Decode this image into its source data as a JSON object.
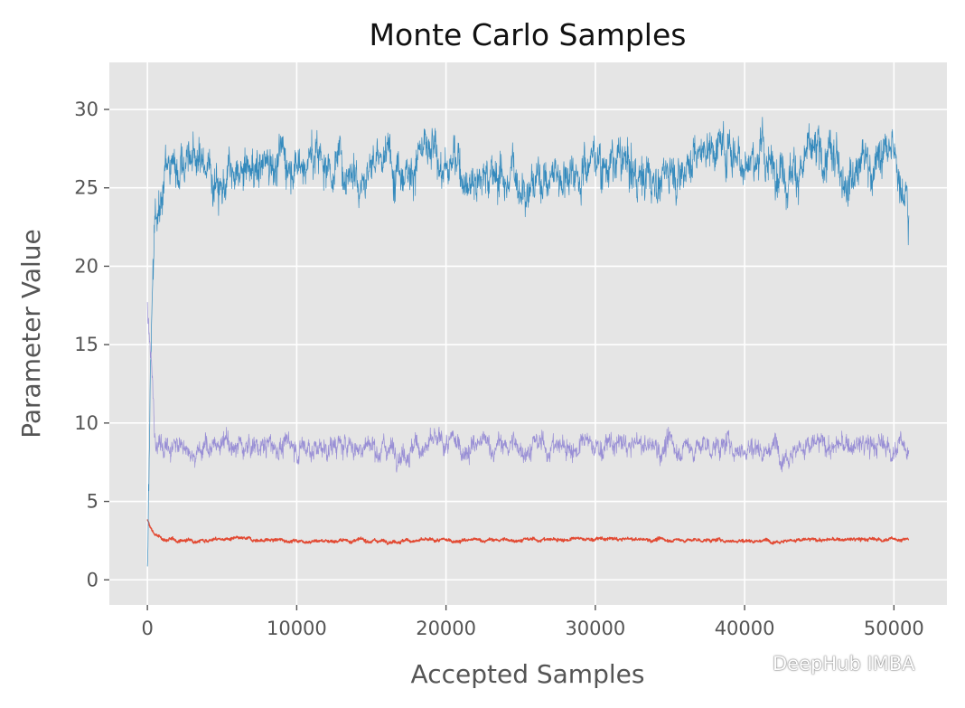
{
  "chart_data": {
    "type": "line",
    "title": "Monte Carlo Samples",
    "xlabel": "Accepted Samples",
    "ylabel": "Parameter Value",
    "xlim": [
      -2550,
      53550
    ],
    "ylim": [
      -1.6,
      33.0
    ],
    "xticks": [
      0,
      10000,
      20000,
      30000,
      40000,
      50000
    ],
    "yticks": [
      0,
      5,
      10,
      15,
      20,
      25,
      30
    ],
    "grid": true,
    "legend": "none",
    "colors": {
      "background": "#E5E5E5",
      "grid": "#FFFFFF",
      "red": "#E24A33",
      "blue": "#348ABD",
      "purple": "#988ED5"
    },
    "series": [
      {
        "color": "#E24A33",
        "x": [
          0,
          200,
          500,
          1000,
          2000,
          5000,
          10000,
          20000,
          30000,
          40000,
          51000
        ],
        "y": [
          3.8,
          3.3,
          2.9,
          2.6,
          2.5,
          2.6,
          2.5,
          2.5,
          2.6,
          2.5,
          2.6
        ],
        "noise": 0.12
      },
      {
        "color": "#348ABD",
        "x": [
          0,
          100,
          200,
          300,
          500,
          800,
          1200,
          2000,
          4000,
          6000,
          8000,
          10000,
          14000,
          18000,
          22000,
          26000,
          30000,
          34000,
          38000,
          42000,
          46000,
          50000,
          51000
        ],
        "y": [
          0.5,
          5.0,
          12.0,
          16.0,
          22.0,
          25.0,
          26.0,
          27.0,
          26.5,
          25.0,
          27.0,
          27.0,
          26.5,
          27.0,
          26.0,
          25.5,
          27.0,
          25.5,
          28.0,
          26.5,
          26.5,
          27.0,
          25.0
        ],
        "noise": 1.6
      },
      {
        "color": "#988ED5",
        "x": [
          0,
          100,
          200,
          300,
          400,
          600,
          1000,
          5000,
          10000,
          20000,
          30000,
          40000,
          51000
        ],
        "y": [
          17.5,
          16.0,
          14.0,
          13.0,
          11.0,
          8.6,
          8.5,
          8.5,
          8.5,
          8.5,
          8.5,
          8.5,
          8.5
        ],
        "noise": 0.8
      }
    ]
  },
  "watermark": {
    "text": "DeepHub IMBA"
  }
}
